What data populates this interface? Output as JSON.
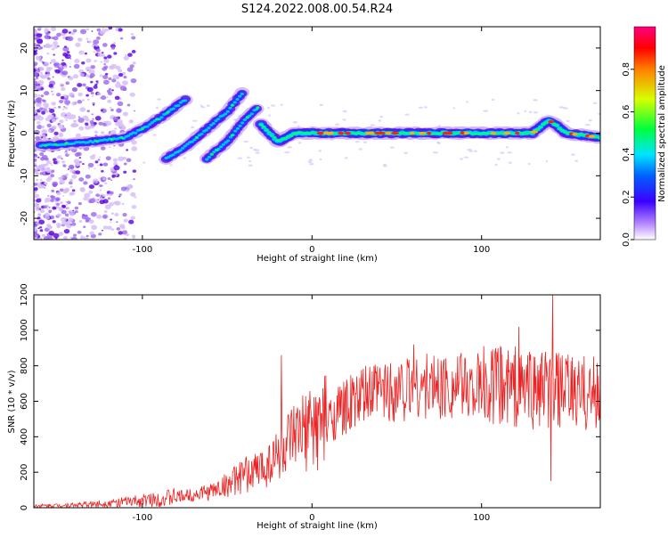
{
  "title": "S124.2022.008.00.54.R24",
  "chart_data": [
    {
      "type": "heatmap",
      "xlabel": "Height of straight line (km)",
      "ylabel": "Frequency (Hz)",
      "xlim": [
        -164,
        170
      ],
      "ylim": [
        -25,
        25
      ],
      "x_ticks": [
        -100,
        0,
        100
      ],
      "y_ticks": [
        -20,
        -10,
        0,
        10,
        20
      ],
      "grid": false,
      "colorbar": {
        "label": "Normalized spectral amplitude",
        "range": [
          0,
          1
        ],
        "ticks": [
          "0.0",
          "0.2",
          "0.4",
          "0.6",
          "0.8"
        ],
        "colors": [
          "#ffffff",
          "#6a00d8",
          "#0000ff",
          "#00e5ff",
          "#00ff3c",
          "#d8ff00",
          "#ff8000",
          "#ff0000",
          "#ff0080"
        ]
      },
      "features": [
        {
          "kind": "ridge",
          "points": [
            [
              -160,
              -3
            ],
            [
              -130,
              -2
            ],
            [
              -110,
              -1
            ],
            [
              -100,
              1
            ],
            [
              -88,
              4
            ],
            [
              -74,
              8
            ]
          ]
        },
        {
          "kind": "ridge",
          "points": [
            [
              -86,
              -6
            ],
            [
              -74,
              -3
            ],
            [
              -62,
              1
            ],
            [
              -50,
              5
            ],
            [
              -40,
              10
            ]
          ]
        },
        {
          "kind": "ridge",
          "points": [
            [
              -62,
              -6
            ],
            [
              -50,
              -2
            ],
            [
              -40,
              3
            ],
            [
              -32,
              6
            ]
          ]
        },
        {
          "kind": "ridge",
          "points": [
            [
              -30,
              2
            ],
            [
              -20,
              -2
            ],
            [
              -10,
              0
            ],
            [
              40,
              0
            ],
            [
              100,
              0
            ],
            [
              130,
              0
            ],
            [
              140,
              3
            ],
            [
              150,
              0
            ],
            [
              170,
              -1
            ]
          ]
        }
      ]
    },
    {
      "type": "line",
      "xlabel": "Height of straight line (km)",
      "ylabel": "SNR (10 * v/v)",
      "xlim": [
        -164,
        170
      ],
      "ylim": [
        0,
        1200
      ],
      "x_ticks": [
        -100,
        0,
        100
      ],
      "y_ticks": [
        0,
        200,
        400,
        600,
        800,
        1000,
        1200
      ],
      "grid": false,
      "series_color": "#ee2222",
      "trend": {
        "x": [
          -164,
          -140,
          -120,
          -100,
          -80,
          -60,
          -50,
          -40,
          -30,
          -20,
          -10,
          0,
          10,
          20,
          30,
          40,
          60,
          80,
          100,
          120,
          140,
          160,
          170
        ],
        "y": [
          10,
          15,
          25,
          40,
          60,
          90,
          130,
          180,
          220,
          300,
          380,
          450,
          500,
          570,
          620,
          660,
          680,
          690,
          680,
          690,
          660,
          640,
          650
        ]
      },
      "spikes": [
        {
          "x": -18,
          "y": 860
        },
        {
          "x": 60,
          "y": 920
        },
        {
          "x": 122,
          "y": 1020
        },
        {
          "x": 142,
          "y": 1200
        },
        {
          "x": 141,
          "y": 150
        }
      ]
    }
  ]
}
